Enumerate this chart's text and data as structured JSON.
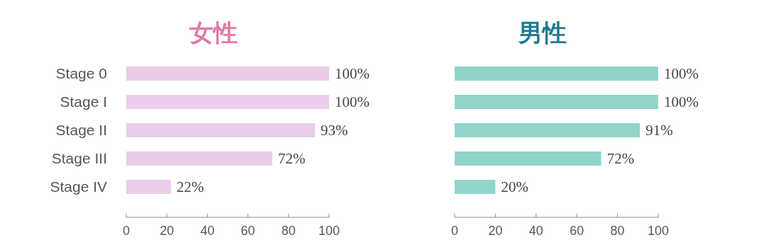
{
  "chart_data": [
    {
      "type": "bar",
      "orientation": "horizontal",
      "title": "女性",
      "categories": [
        "Stage 0",
        "Stage I",
        "Stage II",
        "Stage III",
        "Stage IV"
      ],
      "values": [
        100,
        100,
        93,
        72,
        22
      ],
      "color": "#e9cde9",
      "value_labels": [
        "100%",
        "100%",
        "93%",
        "72%",
        "22%"
      ],
      "xlim": [
        0,
        100
      ],
      "xticks": [
        0,
        20,
        40,
        60,
        80,
        100
      ],
      "grid": false
    },
    {
      "type": "bar",
      "orientation": "horizontal",
      "title": "男性",
      "categories": [
        null,
        null,
        null,
        null,
        null
      ],
      "values": [
        100,
        100,
        91,
        72,
        20
      ],
      "color": "#91d4c9",
      "value_labels": [
        "100%",
        "100%",
        "91%",
        "72%",
        "20%"
      ],
      "xlim": [
        0,
        100
      ],
      "xticks": [
        0,
        20,
        40,
        60,
        80,
        100
      ],
      "tick_labels": "x",
      "grid": false
    }
  ]
}
